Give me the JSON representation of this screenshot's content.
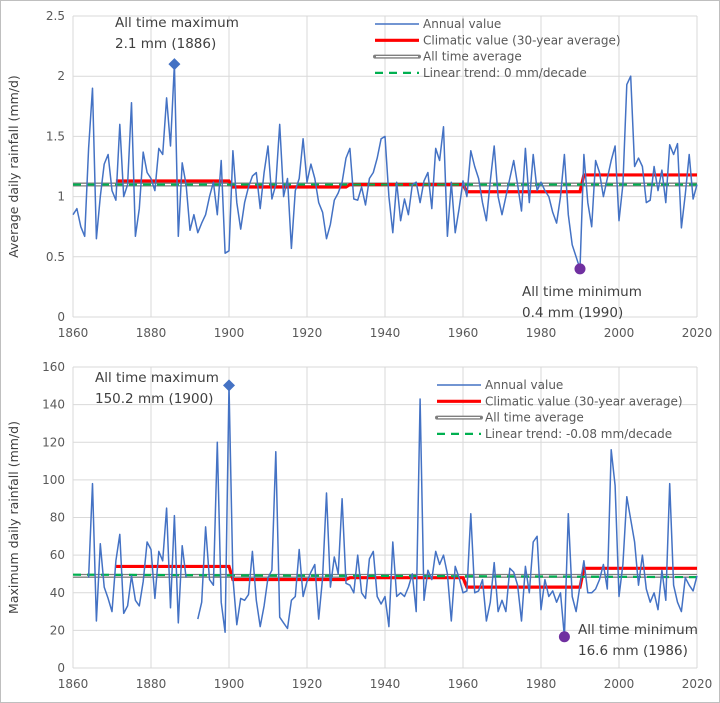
{
  "chart_data": [
    {
      "type": "line",
      "title": "",
      "xlabel": "",
      "ylabel": "Average daily rainfall (mm/d)",
      "xlim": [
        1860,
        2020
      ],
      "ylim": [
        0,
        2.5
      ],
      "x_ticks": [
        "1860",
        "1880",
        "1900",
        "1920",
        "1940",
        "1960",
        "1980",
        "2000",
        "2020"
      ],
      "y_ticks": [
        "0",
        "0.5",
        "1",
        "1.5",
        "2",
        "2.5"
      ],
      "grid": true,
      "legend_placement": "top-right",
      "x_start": 1860,
      "series": [
        {
          "name": "Annual value",
          "color": "#4472c4",
          "style": "solid",
          "values": [
            0.85,
            0.9,
            0.75,
            0.67,
            1.4,
            1.9,
            0.65,
            1.0,
            1.27,
            1.35,
            1.05,
            0.97,
            1.6,
            1.0,
            1.1,
            1.78,
            0.67,
            0.9,
            1.37,
            1.2,
            1.15,
            1.05,
            1.4,
            1.35,
            1.82,
            1.42,
            2.1,
            0.67,
            1.28,
            1.1,
            0.72,
            0.85,
            0.7,
            0.78,
            0.85,
            1.0,
            1.12,
            0.85,
            1.3,
            0.53,
            0.55,
            1.38,
            0.95,
            0.73,
            0.95,
            1.08,
            1.17,
            1.2,
            0.9,
            1.2,
            1.42,
            0.98,
            1.1,
            1.6,
            1.0,
            1.15,
            0.57,
            1.05,
            1.15,
            1.48,
            1.12,
            1.27,
            1.15,
            0.95,
            0.87,
            0.65,
            0.77,
            0.97,
            1.03,
            1.12,
            1.32,
            1.4,
            0.98,
            0.97,
            1.08,
            0.93,
            1.15,
            1.2,
            1.32,
            1.48,
            1.5,
            1.0,
            0.7,
            1.12,
            0.8,
            0.98,
            0.85,
            1.1,
            1.12,
            0.95,
            1.13,
            1.2,
            0.9,
            1.4,
            1.3,
            1.58,
            0.67,
            1.12,
            0.7,
            0.9,
            1.13,
            1.0,
            1.38,
            1.25,
            1.15,
            0.95,
            0.8,
            1.13,
            1.42,
            1.0,
            0.85,
            1.0,
            1.15,
            1.3,
            1.1,
            0.88,
            1.4,
            0.95,
            1.35,
            1.05,
            1.12,
            1.05,
            1.0,
            0.87,
            0.78,
            1.0,
            1.35,
            0.85,
            0.6,
            0.5,
            0.4,
            1.35,
            0.95,
            0.75,
            1.3,
            1.2,
            1.0,
            1.15,
            1.3,
            1.42,
            0.8,
            1.1,
            1.93,
            2.0,
            1.25,
            1.32,
            1.25,
            0.95,
            0.97,
            1.25,
            1.05,
            1.22,
            0.95,
            1.43,
            1.35,
            1.44,
            0.74,
            1.02,
            1.35,
            0.98,
            1.1
          ]
        },
        {
          "name": "Climatic value (30-year average)",
          "color": "#ff0000",
          "style": "thick",
          "periods": [
            {
              "from": 1871,
              "to": 1900,
              "value": 1.13
            },
            {
              "from": 1901,
              "to": 1930,
              "value": 1.08
            },
            {
              "from": 1931,
              "to": 1960,
              "value": 1.1
            },
            {
              "from": 1961,
              "to": 1990,
              "value": 1.04
            },
            {
              "from": 1991,
              "to": 2020,
              "value": 1.18
            }
          ]
        },
        {
          "name": "All time average",
          "color": "#7f7f7f",
          "style": "double",
          "value": 1.1
        },
        {
          "name": "Linear trend: 0 mm/decade",
          "color": "#00b050",
          "style": "dashed",
          "from": [
            1860,
            1.1
          ],
          "to": [
            2020,
            1.1
          ]
        }
      ],
      "annotations": [
        {
          "kind": "max",
          "lines": [
            "All time maximum",
            "2.1 mm (1886)"
          ],
          "x": 1886,
          "y": 2.1,
          "marker": "diamond",
          "color": "#4472c4"
        },
        {
          "kind": "min",
          "lines": [
            "All time minimum",
            "0.4 mm (1990)"
          ],
          "x": 1990,
          "y": 0.4,
          "marker": "circle",
          "color": "#7030a0"
        }
      ]
    },
    {
      "type": "line",
      "title": "",
      "xlabel": "",
      "ylabel": "Maximum daily rainfall (mm/d)",
      "xlim": [
        1860,
        2020
      ],
      "ylim": [
        0,
        160
      ],
      "x_ticks": [
        "1860",
        "1880",
        "1900",
        "1920",
        "1940",
        "1960",
        "1980",
        "2000",
        "2020"
      ],
      "y_ticks": [
        "0",
        "20",
        "40",
        "60",
        "80",
        "100",
        "120",
        "140",
        "160"
      ],
      "grid": true,
      "legend_placement": "top-right",
      "x_start": 1860,
      "series": [
        {
          "name": "Annual value",
          "color": "#4472c4",
          "style": "solid",
          "values": [
            null,
            null,
            null,
            null,
            48,
            98,
            25,
            66,
            43,
            37,
            30,
            57,
            71,
            29,
            33,
            49,
            36,
            33,
            46,
            67,
            63,
            37,
            62,
            57,
            85,
            32,
            81,
            24,
            65,
            48,
            null,
            null,
            26,
            35,
            75,
            47,
            44,
            120,
            35,
            19,
            150.2,
            48,
            23,
            37,
            36,
            39,
            62,
            36,
            22,
            33,
            48,
            52,
            115,
            27,
            24,
            21,
            36,
            38,
            63,
            38,
            46,
            51,
            55,
            26,
            48,
            93,
            43,
            59,
            50,
            90,
            45,
            44,
            40,
            60,
            40,
            37,
            58,
            62,
            38,
            34,
            38,
            22,
            67,
            38,
            40,
            38,
            43,
            50,
            30,
            143,
            36,
            52,
            47,
            62,
            55,
            60,
            50,
            25,
            54,
            48,
            40,
            41,
            82,
            40,
            41,
            47,
            25,
            35,
            56,
            30,
            36,
            30,
            53,
            51,
            44,
            25,
            54,
            40,
            67,
            70,
            31,
            47,
            38,
            41,
            35,
            40,
            16.6,
            82,
            38,
            30,
            44,
            57,
            40,
            40,
            42,
            47,
            55,
            42,
            116,
            97,
            38,
            55,
            91,
            79,
            67,
            44,
            60,
            42,
            35,
            40,
            31,
            52,
            36,
            98,
            44,
            35,
            30,
            48,
            44,
            41,
            49
          ]
        },
        {
          "name": "Climatic value (30-year average)",
          "color": "#ff0000",
          "style": "thick",
          "periods": [
            {
              "from": 1871,
              "to": 1900,
              "value": 54
            },
            {
              "from": 1901,
              "to": 1930,
              "value": 47
            },
            {
              "from": 1931,
              "to": 1960,
              "value": 48
            },
            {
              "from": 1961,
              "to": 1990,
              "value": 43
            },
            {
              "from": 1991,
              "to": 2020,
              "value": 53
            }
          ]
        },
        {
          "name": "All time average",
          "color": "#7f7f7f",
          "style": "double",
          "value": 49
        },
        {
          "name": "Linear trend: -0.08 mm/decade",
          "color": "#00b050",
          "style": "dashed",
          "from": [
            1860,
            49.6
          ],
          "to": [
            2020,
            48.3
          ]
        }
      ],
      "annotations": [
        {
          "kind": "max",
          "lines": [
            "All time maximum",
            "150.2 mm (1900)"
          ],
          "x": 1900,
          "y": 150.2,
          "marker": "diamond",
          "color": "#4472c4"
        },
        {
          "kind": "min",
          "lines": [
            "All time minimum",
            "16.6 mm (1986)"
          ],
          "x": 1986,
          "y": 16.6,
          "marker": "circle",
          "color": "#7030a0"
        }
      ]
    }
  ]
}
